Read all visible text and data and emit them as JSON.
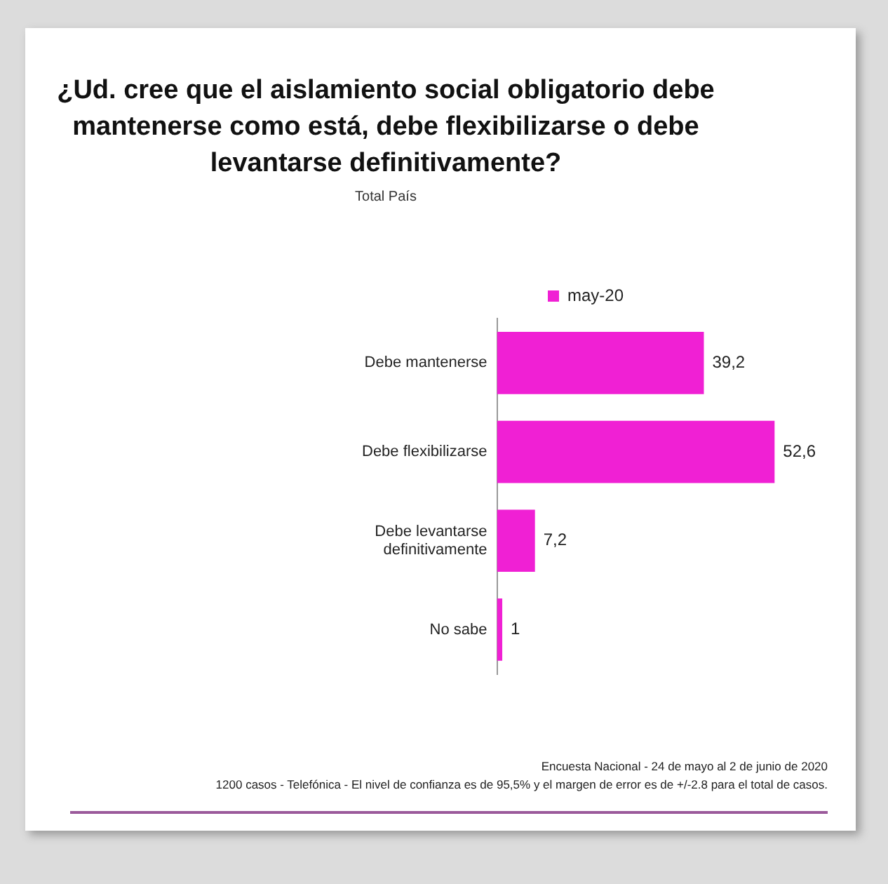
{
  "chart_data": {
    "type": "bar",
    "orientation": "horizontal",
    "title": "¿Ud. cree que el aislamiento social obligatorio debe mantenerse  como está, debe flexibilizarse o debe levantarse definitivamente?",
    "subtitle": "Total País",
    "categories": [
      "Debe mantenerse",
      "Debe flexibilizarse",
      "Debe levantarse definitivamente",
      "No sabe"
    ],
    "series": [
      {
        "name": "may-20",
        "color": "#f020d4",
        "values": [
          39.2,
          52.6,
          7.2,
          1
        ],
        "value_labels": [
          "39,2",
          "52,6",
          "7,2",
          "1"
        ]
      }
    ],
    "legend": "top",
    "tick_labels": "y",
    "grid": false,
    "annotations": [
      "Encuesta Nacional - 24 de mayo al 2 de junio de 2020",
      "1200 casos - Telefónica  - El nivel de confianza es de 95,5% y el margen de error es de +/-2.8 para el total de casos."
    ]
  }
}
